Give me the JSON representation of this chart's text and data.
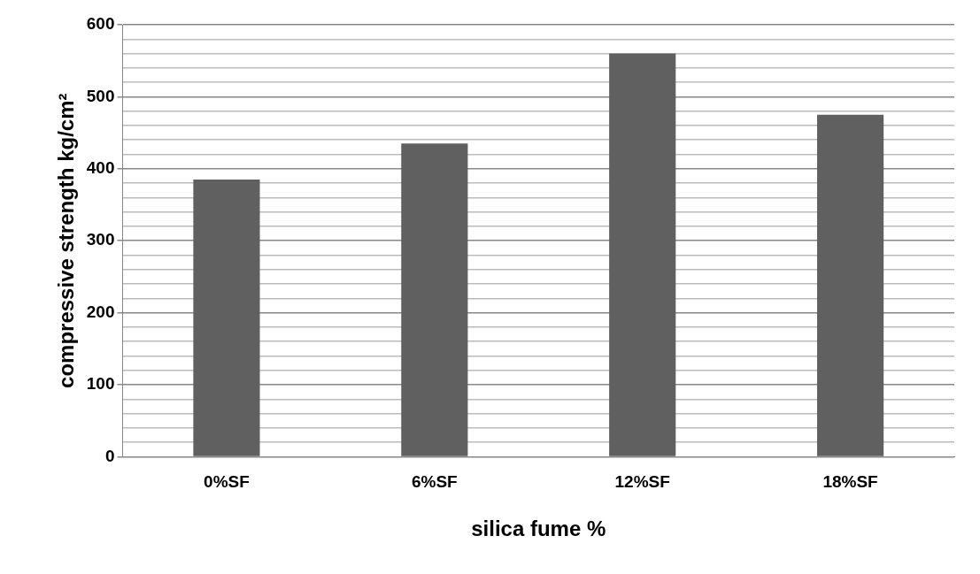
{
  "chart_data": {
    "type": "bar",
    "xlabel": "silica fume %",
    "ylabel": "compressive strength kg/cm²",
    "categories": [
      "0%SF",
      "6%SF",
      "12%SF",
      "18%SF"
    ],
    "values": [
      385,
      435,
      560,
      475
    ],
    "color": "#606060",
    "ylim": [
      0,
      600
    ],
    "yticks": [
      0,
      {
        "value": 20,
        "label": null
      },
      {
        "value": 40,
        "label": null
      },
      {
        "value": 60,
        "label": null
      },
      {
        "value": 80,
        "label": null
      },
      100,
      {
        "value": 120,
        "label": null
      },
      {
        "value": 140,
        "label": null
      },
      {
        "value": 160,
        "label": null
      },
      {
        "value": 180,
        "label": null
      },
      200,
      {
        "value": 220,
        "label": null
      },
      {
        "value": 240,
        "label": null
      },
      {
        "value": 260,
        "label": null
      },
      {
        "value": 280,
        "label": null
      },
      300,
      {
        "value": 320,
        "label": null
      },
      {
        "value": 340,
        "label": null
      },
      {
        "value": 360,
        "label": null
      },
      {
        "value": 380,
        "label": null
      },
      400,
      {
        "value": 420,
        "label": null
      },
      {
        "value": 440,
        "label": null
      },
      {
        "value": 460,
        "label": null
      },
      {
        "value": 480,
        "label": null
      },
      500,
      {
        "value": 520,
        "label": null
      },
      {
        "value": 540,
        "label": null
      },
      {
        "value": 560,
        "label": null
      },
      {
        "value": 580,
        "label": null
      },
      600
    ],
    "grid": "y"
  }
}
